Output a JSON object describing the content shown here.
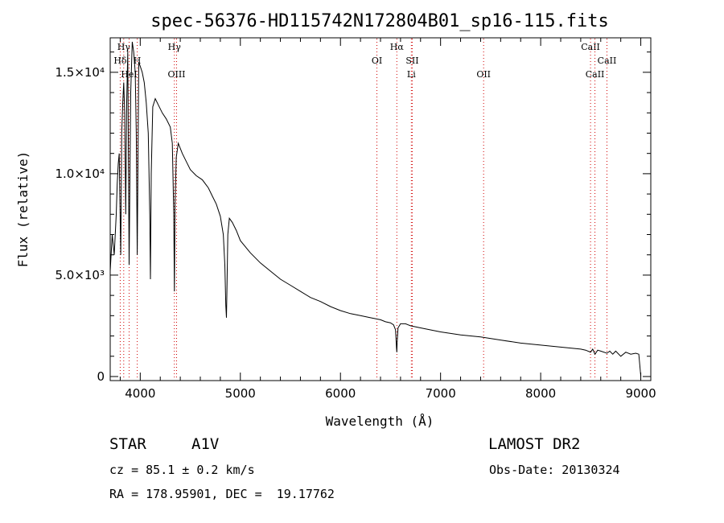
{
  "chart_data": {
    "type": "line",
    "title": "spec-56376-HD115742N172804B01_sp16-115.fits",
    "xlabel": "Wavelength (Å)",
    "ylabel": "Flux (relative)",
    "xlim": [
      3700,
      9100
    ],
    "ylim": [
      -200,
      16700
    ],
    "grid": false,
    "x_ticks": [
      {
        "value": 4000,
        "label": "4000"
      },
      {
        "value": 5000,
        "label": "5000"
      },
      {
        "value": 6000,
        "label": "6000"
      },
      {
        "value": 7000,
        "label": "7000"
      },
      {
        "value": 8000,
        "label": "8000"
      },
      {
        "value": 9000,
        "label": "9000"
      }
    ],
    "y_ticks": [
      {
        "value": 0,
        "label": "0"
      },
      {
        "value": 5000,
        "label": "5.0×10³"
      },
      {
        "value": 10000,
        "label": "1.0×10⁴"
      },
      {
        "value": 15000,
        "label": "1.5×10⁴"
      }
    ],
    "series": [
      {
        "x": [
          3700,
          3720,
          3740,
          3760,
          3770,
          3780,
          3790,
          3797,
          3805,
          3815,
          3825,
          3835,
          3845,
          3855,
          3865,
          3875,
          3889,
          3905,
          3920,
          3935,
          3950,
          3960,
          3970,
          3985,
          4000,
          4020,
          4040,
          4060,
          4080,
          4095,
          4102,
          4110,
          4125,
          4150,
          4180,
          4220,
          4260,
          4300,
          4320,
          4335,
          4341,
          4348,
          4360,
          4380,
          4420,
          4460,
          4500,
          4560,
          4620,
          4680,
          4720,
          4760,
          4800,
          4830,
          4845,
          4855,
          4861,
          4867,
          4875,
          4890,
          4920,
          4960,
          5000,
          5100,
          5200,
          5300,
          5400,
          5500,
          5600,
          5700,
          5800,
          5900,
          6000,
          6100,
          6200,
          6300,
          6400,
          6450,
          6500,
          6530,
          6550,
          6560,
          6563,
          6566,
          6575,
          6600,
          6650,
          6700,
          6800,
          6900,
          7000,
          7200,
          7400,
          7600,
          7800,
          8000,
          8200,
          8400,
          8450,
          8498,
          8520,
          8542,
          8570,
          8600,
          8662,
          8690,
          8720,
          8750,
          8800,
          8850,
          8900,
          8950,
          8980,
          9000
        ],
        "values": [
          5200,
          7000,
          6000,
          8000,
          9500,
          10500,
          11000,
          8500,
          6000,
          12000,
          13500,
          14500,
          13000,
          8000,
          13500,
          16000,
          5500,
          14000,
          16500,
          16000,
          15000,
          12000,
          6000,
          15500,
          15300,
          15000,
          14500,
          13500,
          12000,
          8000,
          4800,
          10000,
          13300,
          13700,
          13400,
          13000,
          12700,
          12300,
          11500,
          8000,
          4200,
          8500,
          10800,
          11500,
          11000,
          10600,
          10200,
          9900,
          9700,
          9300,
          8900,
          8500,
          7900,
          7000,
          5500,
          3500,
          2900,
          4500,
          7000,
          7800,
          7600,
          7200,
          6700,
          6100,
          5600,
          5200,
          4800,
          4500,
          4200,
          3900,
          3700,
          3450,
          3250,
          3100,
          3000,
          2900,
          2800,
          2700,
          2650,
          2550,
          2300,
          1400,
          1200,
          1700,
          2400,
          2600,
          2600,
          2500,
          2400,
          2300,
          2200,
          2050,
          1950,
          1800,
          1650,
          1550,
          1450,
          1350,
          1300,
          1200,
          1350,
          1100,
          1300,
          1250,
          1150,
          1250,
          1100,
          1250,
          1000,
          1200,
          1100,
          1150,
          1100,
          0
        ]
      }
    ],
    "line_markers": [
      {
        "label": "Hγ",
        "wavelength": 3835,
        "row": 1
      },
      {
        "label": "Hδ",
        "wavelength": 3800,
        "row": 2
      },
      {
        "label": "H",
        "wavelength": 3970,
        "row": 2
      },
      {
        "label": "HeI",
        "wavelength": 3889,
        "row": 3
      },
      {
        "label": "Hγ",
        "wavelength": 4341,
        "row": 1
      },
      {
        "label": "OIII",
        "wavelength": 4363,
        "row": 3
      },
      {
        "label": "Hα",
        "wavelength": 6563,
        "row": 1
      },
      {
        "label": "OI",
        "wavelength": 6364,
        "row": 2
      },
      {
        "label": "SII",
        "wavelength": 6717,
        "row": 2
      },
      {
        "label": "Li",
        "wavelength": 6708,
        "row": 3
      },
      {
        "label": "OII",
        "wavelength": 7430,
        "row": 3
      },
      {
        "label": "CaII",
        "wavelength": 8498,
        "row": 1
      },
      {
        "label": "CaII",
        "wavelength": 8662,
        "row": 2
      },
      {
        "label": "CaII",
        "wavelength": 8542,
        "row": 3
      }
    ]
  },
  "info": {
    "object_class": "STAR",
    "subclass": "A1V",
    "survey": "LAMOST DR2",
    "redshift_text": "cz = 85.1 ± 0.2 km/s",
    "obs_date_text": "Obs-Date: 20130324",
    "coords_text": "RA = 178.95901, DEC =  19.17762"
  }
}
